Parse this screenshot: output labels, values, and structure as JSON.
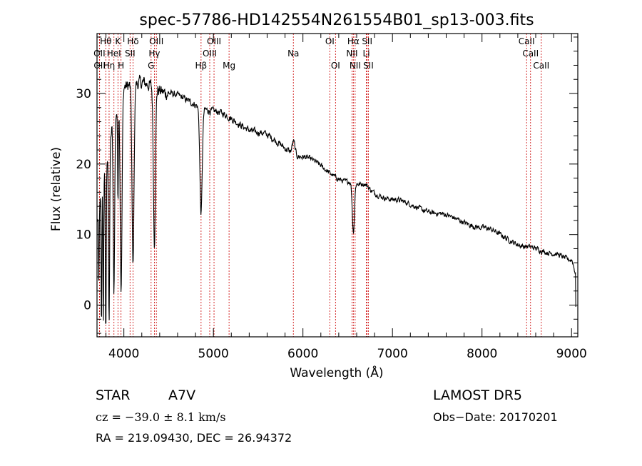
{
  "chart_data": {
    "type": "line",
    "title": "spec-57786-HD142554N261554B01_sp13-003.fits",
    "xlabel": "Wavelength (Å)",
    "ylabel": "Flux (relative)",
    "xlim": [
      3700,
      9070
    ],
    "ylim": [
      -4.5,
      38.5
    ],
    "x_ticks": [
      4000,
      5000,
      6000,
      7000,
      8000,
      9000
    ],
    "y_ticks": [
      0,
      10,
      20,
      30
    ],
    "grid": false,
    "line_color": "#000000",
    "marker_color": "#d01818",
    "spectral_lines": [
      {
        "label": "Hδ",
        "wavelength": 4102,
        "row": 1
      },
      {
        "label": "Hγ",
        "wavelength": 4341,
        "row": 2
      },
      {
        "label": "Hβ",
        "wavelength": 4862,
        "row": 3
      },
      {
        "label": "Hα",
        "wavelength": 6563,
        "row": 1
      },
      {
        "label": "Hθ",
        "wavelength": 3798,
        "row": 1
      },
      {
        "label": "Hη",
        "wavelength": 3835,
        "row": 3
      },
      {
        "label": "K",
        "wavelength": 3934,
        "row": 1
      },
      {
        "label": "H",
        "wavelength": 3968,
        "row": 3
      },
      {
        "label": "CaII",
        "wavelength": 8498,
        "row": 1
      },
      {
        "label": "CaII",
        "wavelength": 8542,
        "row": 2
      },
      {
        "label": "CaII",
        "wavelength": 8662,
        "row": 3
      },
      {
        "label": "OII",
        "wavelength": 3727,
        "row": 2
      },
      {
        "label": "OII",
        "wavelength": 3729,
        "row": 3
      },
      {
        "label": "HeI",
        "wavelength": 3889,
        "row": 2
      },
      {
        "label": "SII",
        "wavelength": 4069,
        "row": 2
      },
      {
        "label": "OIII",
        "wavelength": 4363,
        "row": 1
      },
      {
        "label": "G",
        "wavelength": 4304,
        "row": 3
      },
      {
        "label": "OIII",
        "wavelength": 4959,
        "row": 2
      },
      {
        "label": "OIII",
        "wavelength": 5007,
        "row": 1
      },
      {
        "label": "Mg",
        "wavelength": 5175,
        "row": 3
      },
      {
        "label": "Na",
        "wavelength": 5893,
        "row": 2
      },
      {
        "label": "OI",
        "wavelength": 6300,
        "row": 1
      },
      {
        "label": "OI",
        "wavelength": 6364,
        "row": 3
      },
      {
        "label": "NII",
        "wavelength": 6548,
        "row": 2
      },
      {
        "label": "NII",
        "wavelength": 6583,
        "row": 3
      },
      {
        "label": "SII",
        "wavelength": 6717,
        "row": 1
      },
      {
        "label": "SII",
        "wavelength": 6731,
        "row": 3
      },
      {
        "label": "Li",
        "wavelength": 6708,
        "row": 2
      }
    ],
    "continuum_anchors": [
      [
        3700,
        12
      ],
      [
        3800,
        20
      ],
      [
        3900,
        27
      ],
      [
        4000,
        31
      ],
      [
        4200,
        31.5
      ],
      [
        4500,
        30
      ],
      [
        5000,
        27.5
      ],
      [
        5500,
        24.5
      ],
      [
        6000,
        21
      ],
      [
        6500,
        17.5
      ],
      [
        7000,
        15
      ],
      [
        7500,
        13
      ],
      [
        8000,
        11
      ],
      [
        8500,
        8.3
      ],
      [
        8800,
        7.3
      ],
      [
        9000,
        6.4
      ],
      [
        9050,
        4.5
      ]
    ],
    "absorption_features": [
      {
        "center": 3720,
        "depth": 10,
        "width": 4
      },
      {
        "center": 3750,
        "depth": 20,
        "width": 4
      },
      {
        "center": 3771,
        "depth": 22,
        "width": 4
      },
      {
        "center": 3798,
        "depth": 24,
        "width": 5
      },
      {
        "center": 3835,
        "depth": 24,
        "width": 6
      },
      {
        "center": 3889,
        "depth": 25,
        "width": 8
      },
      {
        "center": 3934,
        "depth": 14,
        "width": 4
      },
      {
        "center": 3970,
        "depth": 28,
        "width": 10
      },
      {
        "center": 4102,
        "depth": 26,
        "width": 11
      },
      {
        "center": 4341,
        "depth": 22,
        "width": 11
      },
      {
        "center": 4862,
        "depth": 15,
        "width": 13
      },
      {
        "center": 6563,
        "depth": 7,
        "width": 12
      }
    ],
    "emission_bumps": [
      {
        "center": 5895,
        "height": 1.8,
        "width": 15
      },
      {
        "center": 6700,
        "height": 0.5,
        "width": 35
      }
    ]
  },
  "info": {
    "object_type": "STAR",
    "spectral_class": "A7V",
    "survey": "LAMOST DR5",
    "redshift_text": "cz = −39.0 ± 8.1 km/s",
    "obs_date_text": "Obs−Date: 20170201",
    "coords_text": "RA = 219.09430, DEC =  26.94372"
  }
}
